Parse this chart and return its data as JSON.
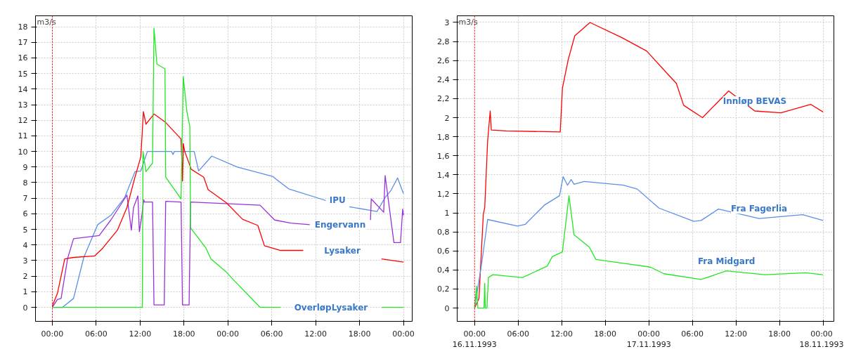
{
  "chart_data": [
    {
      "type": "line",
      "ylabel": "m3/s",
      "xlim": [
        "1993-11-15T21:42",
        "1993-11-18T01:12"
      ],
      "ylim": [
        -0.9,
        18.7
      ],
      "xticks": [
        {
          "value": "1993-11-16T00:00",
          "label": "00:00"
        },
        {
          "value": "1993-11-16T06:00",
          "label": "06:00"
        },
        {
          "value": "1993-11-16T12:00",
          "label": "12:00"
        },
        {
          "value": "1993-11-16T18:00",
          "label": "18:00"
        },
        {
          "value": "1993-11-17T00:00",
          "label": "00:00"
        },
        {
          "value": "1993-11-17T06:00",
          "label": "06:00"
        },
        {
          "value": "1993-11-17T12:00",
          "label": "12:00"
        },
        {
          "value": "1993-11-17T18:00",
          "label": "18:00"
        },
        {
          "value": "1993-11-18T00:00",
          "label": "00:00"
        }
      ],
      "yticks": [
        0,
        1,
        2,
        3,
        4,
        5,
        6,
        7,
        8,
        9,
        10,
        11,
        12,
        13,
        14,
        15,
        16,
        17,
        18
      ],
      "grid": true,
      "ref_lines": [
        {
          "axis": "x",
          "value": "1993-11-16T00:00",
          "color": "#ff0000",
          "line_style": "dotted"
        }
      ],
      "series": [
        {
          "name": "IPU",
          "color": "#5b8ee6",
          "x": [
            "1993-11-16T00:00",
            "1993-11-16T01:24",
            "1993-11-16T02:54",
            "1993-11-16T04:18",
            "1993-11-16T06:12",
            "1993-11-16T08:00",
            "1993-11-16T09:54",
            "1993-11-16T11:18",
            "1993-11-16T12:06",
            "1993-11-16T13:00",
            "1993-11-16T16:18",
            "1993-11-16T16:30",
            "1993-11-16T16:42",
            "1993-11-16T19:24",
            "1993-11-16T20:00",
            "1993-11-16T21:48",
            "1993-11-17T01:18",
            "1993-11-17T06:06",
            "1993-11-17T08:18",
            "1993-11-17T13:24",
            "1993-11-17T15:00",
            "1993-11-17T16:36",
            "1993-11-17T20:24",
            "1993-11-17T21:30",
            "1993-11-17T22:18",
            "1993-11-17T23:12",
            "1993-11-18T00:00"
          ],
          "values": [
            0,
            0,
            0.57,
            3.2,
            5.3,
            5.9,
            7.05,
            8.7,
            8.75,
            10,
            10,
            9.8,
            10,
            10,
            8.75,
            9.7,
            9.0,
            8.4,
            7.6,
            6.85,
            null,
            6.45,
            6.15,
            7.05,
            7.5,
            8.3,
            7.3
          ]
        },
        {
          "name": "Engervann",
          "color": "#9b30d9",
          "x": [
            "1993-11-16T00:00",
            "1993-11-16T00:42",
            "1993-11-16T01:12",
            "1993-11-16T02:06",
            "1993-11-16T02:54",
            "1993-11-16T06:24",
            "1993-11-16T08:00",
            "1993-11-16T10:12",
            "1993-11-16T10:48",
            "1993-11-16T11:06",
            "1993-11-16T11:42",
            "1993-11-16T11:54",
            "1993-11-16T12:12",
            "1993-11-16T12:30",
            "1993-11-16T12:36",
            "1993-11-16T13:42",
            "1993-11-16T13:54",
            "1993-11-16T15:18",
            "1993-11-16T15:30",
            "1993-11-16T17:36",
            "1993-11-16T17:48",
            "1993-11-16T18:42",
            "1993-11-16T18:54",
            "1993-11-17T04:24",
            "1993-11-17T06:24",
            "1993-11-17T08:36",
            "1993-11-17T11:12",
            "1993-11-17T15:00",
            "1993-11-17T19:30",
            "1993-11-17T19:36",
            "1993-11-17T21:18",
            "1993-11-17T21:30",
            "1993-11-17T22:42",
            "1993-11-17T23:36",
            "1993-11-17T23:54",
            "1993-11-18T00:00"
          ],
          "values": [
            0,
            0.5,
            0.57,
            3.15,
            4.4,
            4.6,
            5.6,
            7.2,
            4.95,
            6.4,
            7.15,
            4.85,
            5.75,
            6.9,
            6.75,
            6.75,
            0.15,
            0.15,
            6.8,
            6.75,
            0.15,
            0.15,
            6.75,
            6.55,
            5.6,
            5.4,
            5.3,
            null,
            5.6,
            6.95,
            6.1,
            8.45,
            4.15,
            4.15,
            6.3,
            5.9
          ]
        },
        {
          "name": "Lysaker",
          "color": "#ff0000",
          "x": [
            "1993-11-16T00:00",
            "1993-11-16T00:42",
            "1993-11-16T01:42",
            "1993-11-16T02:54",
            "1993-11-16T05:48",
            "1993-11-16T06:54",
            "1993-11-16T08:54",
            "1993-11-16T10:12",
            "1993-11-16T11:18",
            "1993-11-16T12:06",
            "1993-11-16T12:24",
            "1993-11-16T12:27",
            "1993-11-16T12:48",
            "1993-11-16T13:54",
            "1993-11-16T15:24",
            "1993-11-16T17:36",
            "1993-11-16T17:48",
            "1993-11-16T17:54",
            "1993-11-16T18:06",
            "1993-11-16T19:00",
            "1993-11-16T20:42",
            "1993-11-16T21:18",
            "1993-11-16T23:48",
            "1993-11-17T02:00",
            "1993-11-17T04:06",
            "1993-11-17T05:00",
            "1993-11-17T07:12",
            "1993-11-17T10:18",
            "1993-11-17T15:00",
            "1993-11-17T21:00",
            "1993-11-18T00:00"
          ],
          "values": [
            0.08,
            0.9,
            3.1,
            3.2,
            3.3,
            3.8,
            4.95,
            6.4,
            8.35,
            9.65,
            12.1,
            12.55,
            11.75,
            12.4,
            11.9,
            10.8,
            8.1,
            10.5,
            10,
            8.85,
            8.35,
            7.55,
            6.7,
            5.65,
            5.25,
            3.95,
            3.65,
            3.65,
            null,
            3.1,
            2.9
          ]
        },
        {
          "name": "OverløpLysaker",
          "color": "#22e622",
          "x": [
            "1993-11-16T00:00",
            "1993-11-16T12:18",
            "1993-11-16T12:24",
            "1993-11-16T12:48",
            "1993-11-16T13:42",
            "1993-11-16T13:54",
            "1993-11-16T14:18",
            "1993-11-16T15:24",
            "1993-11-16T15:30",
            "1993-11-16T17:36",
            "1993-11-16T17:54",
            "1993-11-16T18:24",
            "1993-11-16T18:48",
            "1993-11-16T18:54",
            "1993-11-16T21:00",
            "1993-11-16T21:42",
            "1993-11-16T23:48",
            "1993-11-17T00:42",
            "1993-11-17T04:24",
            "1993-11-17T07:12",
            "1993-11-17T14:00",
            "1993-11-17T21:00",
            "1993-11-18T00:00"
          ],
          "values": [
            0,
            0,
            10,
            8.7,
            9.25,
            17.9,
            15.6,
            15.3,
            8.35,
            6.95,
            14.8,
            12.55,
            11.6,
            5.1,
            3.8,
            3.1,
            2.25,
            1.8,
            0,
            0,
            null,
            0,
            0
          ]
        }
      ]
    },
    {
      "type": "line",
      "ylabel": "m3/s",
      "xlim": [
        "1993-11-15T21:36",
        "1993-11-18T01:30"
      ],
      "ylim": [
        -0.14,
        3.07
      ],
      "xticks": [
        {
          "value": "1993-11-16T00:00",
          "label": "00:00\n16.11.1993"
        },
        {
          "value": "1993-11-16T06:00",
          "label": "06:00"
        },
        {
          "value": "1993-11-16T12:00",
          "label": "12:00"
        },
        {
          "value": "1993-11-16T18:00",
          "label": "18:00"
        },
        {
          "value": "1993-11-17T00:00",
          "label": "00:00\n17.11.1993"
        },
        {
          "value": "1993-11-17T06:00",
          "label": "06:00"
        },
        {
          "value": "1993-11-17T12:00",
          "label": "12:00"
        },
        {
          "value": "1993-11-17T18:00",
          "label": "18:00"
        },
        {
          "value": "1993-11-18T00:00",
          "label": "00:00\n18.11.1993"
        }
      ],
      "yticks": [
        0,
        {
          "value": 0.2,
          "label": "0,2"
        },
        {
          "value": 0.4,
          "label": "0,4"
        },
        {
          "value": 0.6,
          "label": "0,6"
        },
        {
          "value": 0.8,
          "label": "0,8"
        },
        1,
        {
          "value": 1.2,
          "label": "1,2"
        },
        {
          "value": 1.4,
          "label": "1,4"
        },
        {
          "value": 1.6,
          "label": "1,6"
        },
        {
          "value": 1.8,
          "label": "1,8"
        },
        2,
        {
          "value": 2.2,
          "label": "2,2"
        },
        {
          "value": 2.4,
          "label": "2,4"
        },
        {
          "value": 2.6,
          "label": "2,6"
        },
        {
          "value": 2.8,
          "label": "2,8"
        },
        3
      ],
      "grid": true,
      "ref_lines": [
        {
          "axis": "x",
          "value": "1993-11-16T00:00",
          "color": "#ff0000",
          "line_style": "dotted"
        }
      ],
      "series": [
        {
          "name": "Innløp BEVAS",
          "color": "#ff0000",
          "x": [
            "1993-11-16T00:00",
            "1993-11-16T00:36",
            "1993-11-16T01:12",
            "1993-11-16T01:24",
            "1993-11-16T01:48",
            "1993-11-16T02:09",
            "1993-11-16T02:18",
            "1993-11-16T04:24",
            "1993-11-16T11:48",
            "1993-11-16T12:06",
            "1993-11-16T12:54",
            "1993-11-16T13:48",
            "1993-11-16T15:54",
            "1993-11-16T20:18",
            "1993-11-16T23:42",
            "1993-11-17T02:42",
            "1993-11-17T03:48",
            "1993-11-17T04:48",
            "1993-11-17T07:24",
            "1993-11-17T11:00",
            "1993-11-17T14:36",
            "1993-11-17T18:12",
            "1993-11-17T22:18",
            "1993-11-18T00:00"
          ],
          "values": [
            0,
            0.1,
            0.98,
            1.06,
            1.76,
            2.07,
            1.87,
            1.86,
            1.85,
            2.31,
            2.61,
            2.86,
            3.0,
            2.84,
            2.7,
            2.45,
            2.36,
            2.13,
            2.0,
            2.28,
            2.07,
            2.05,
            2.14,
            2.06
          ]
        },
        {
          "name": "Fra Fagerlia",
          "color": "#5b8ee6",
          "x": [
            "1993-11-16T00:00",
            "1993-11-16T01:00",
            "1993-11-16T01:48",
            "1993-11-16T05:54",
            "1993-11-16T07:00",
            "1993-11-16T09:36",
            "1993-11-16T11:42",
            "1993-11-16T12:12",
            "1993-11-16T12:48",
            "1993-11-16T13:18",
            "1993-11-16T13:42",
            "1993-11-16T15:06",
            "1993-11-16T20:30",
            "1993-11-16T22:24",
            "1993-11-17T01:24",
            "1993-11-17T06:12",
            "1993-11-17T07:12",
            "1993-11-17T09:36",
            "1993-11-17T15:12",
            "1993-11-17T21:12",
            "1993-11-18T00:00"
          ],
          "values": [
            0,
            0.48,
            0.93,
            0.86,
            0.88,
            1.08,
            1.18,
            1.38,
            1.29,
            1.35,
            1.3,
            1.33,
            1.29,
            1.25,
            1.05,
            0.91,
            0.92,
            1.04,
            0.94,
            0.98,
            0.92
          ]
        },
        {
          "name": "Fra Midgard",
          "color": "#22e622",
          "x": [
            "1993-11-16T00:00",
            "1993-11-16T00:16",
            "1993-11-16T00:27",
            "1993-11-16T01:18",
            "1993-11-16T01:24",
            "1993-11-16T01:28",
            "1993-11-16T01:42",
            "1993-11-16T01:54",
            "1993-11-16T02:30",
            "1993-11-16T06:36",
            "1993-11-16T10:00",
            "1993-11-16T10:42",
            "1993-11-16T12:06",
            "1993-11-16T13:00",
            "1993-11-16T13:42",
            "1993-11-16T15:48",
            "1993-11-16T16:42",
            "1993-11-16T20:30",
            "1993-11-17T00:12",
            "1993-11-17T02:06",
            "1993-11-17T07:12",
            "1993-11-17T10:42",
            "1993-11-17T16:00",
            "1993-11-17T21:36",
            "1993-11-18T00:00"
          ],
          "values": [
            0,
            0.23,
            0,
            0,
            0.26,
            0,
            0,
            0.32,
            0.35,
            0.32,
            0.44,
            0.54,
            0.59,
            1.18,
            0.77,
            0.64,
            0.51,
            0.47,
            0.43,
            0.36,
            0.3,
            0.39,
            0.35,
            0.37,
            0.35
          ]
        }
      ]
    }
  ]
}
